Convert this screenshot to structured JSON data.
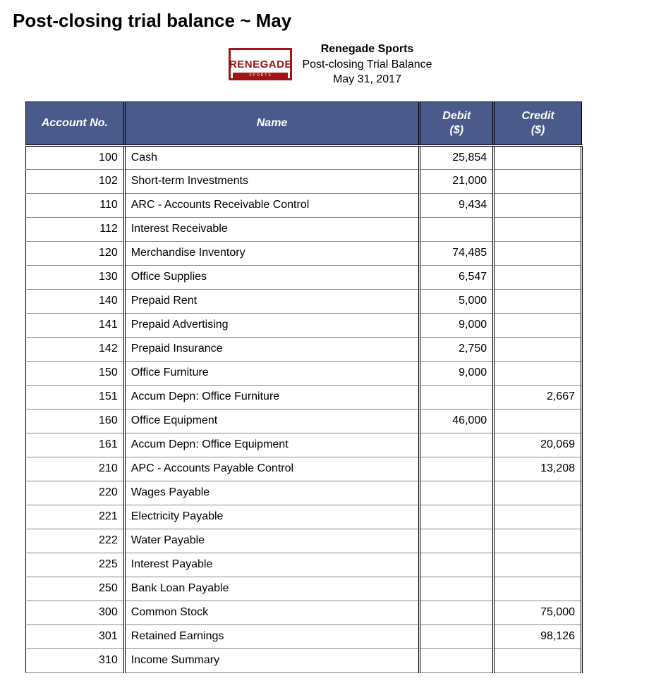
{
  "page": {
    "title": "Post-closing trial balance ~ May"
  },
  "docHeader": {
    "logoMain": "RENEGADE",
    "logoSub": "SPORTS",
    "company": "Renegade Sports",
    "reportName": "Post-closing Trial Balance",
    "date": "May 31, 2017"
  },
  "table": {
    "headers": {
      "acct": "Account No.",
      "name": "Name",
      "debit": "Debit ($)",
      "credit": "Credit ($)"
    },
    "rows": [
      {
        "acct": "100",
        "name": "Cash",
        "debit": "25,854",
        "credit": ""
      },
      {
        "acct": "102",
        "name": "Short-term Investments",
        "debit": "21,000",
        "credit": ""
      },
      {
        "acct": "110",
        "name": "ARC - Accounts Receivable Control",
        "debit": "9,434",
        "credit": ""
      },
      {
        "acct": "112",
        "name": "Interest Receivable",
        "debit": "",
        "credit": ""
      },
      {
        "acct": "120",
        "name": "Merchandise Inventory",
        "debit": "74,485",
        "credit": ""
      },
      {
        "acct": "130",
        "name": "Office Supplies",
        "debit": "6,547",
        "credit": ""
      },
      {
        "acct": "140",
        "name": "Prepaid Rent",
        "debit": "5,000",
        "credit": ""
      },
      {
        "acct": "141",
        "name": "Prepaid Advertising",
        "debit": "9,000",
        "credit": ""
      },
      {
        "acct": "142",
        "name": "Prepaid Insurance",
        "debit": "2,750",
        "credit": ""
      },
      {
        "acct": "150",
        "name": "Office Furniture",
        "debit": "9,000",
        "credit": ""
      },
      {
        "acct": "151",
        "name": "Accum Depn: Office Furniture",
        "debit": "",
        "credit": "2,667"
      },
      {
        "acct": "160",
        "name": "Office Equipment",
        "debit": "46,000",
        "credit": ""
      },
      {
        "acct": "161",
        "name": "Accum Depn: Office Equipment",
        "debit": "",
        "credit": "20,069"
      },
      {
        "acct": "210",
        "name": "APC - Accounts Payable Control",
        "debit": "",
        "credit": "13,208"
      },
      {
        "acct": "220",
        "name": "Wages Payable",
        "debit": "",
        "credit": ""
      },
      {
        "acct": "221",
        "name": "Electricity Payable",
        "debit": "",
        "credit": ""
      },
      {
        "acct": "222",
        "name": "Water Payable",
        "debit": "",
        "credit": ""
      },
      {
        "acct": "225",
        "name": "Interest Payable",
        "debit": "",
        "credit": ""
      },
      {
        "acct": "250",
        "name": "Bank Loan Payable",
        "debit": "",
        "credit": ""
      },
      {
        "acct": "300",
        "name": "Common Stock",
        "debit": "",
        "credit": "75,000"
      },
      {
        "acct": "301",
        "name": "Retained Earnings",
        "debit": "",
        "credit": "98,126"
      },
      {
        "acct": "310",
        "name": "Income Summary",
        "debit": "",
        "credit": ""
      }
    ]
  },
  "styles": {
    "headerBg": "#4a5a8a",
    "headerText": "#ffffff",
    "logoBorder": "#a01414",
    "pageBg": "#ffffff",
    "textColor": "#000000",
    "tableBorder": "#000000",
    "rowBorder": "#888888",
    "fontSizeTitle": 26,
    "fontSizeHeader": 16,
    "fontSizeBody": 16,
    "tableWidth": 790,
    "colWidths": {
      "acct": 140,
      "name": 420,
      "debit": 105,
      "credit": 125
    }
  }
}
